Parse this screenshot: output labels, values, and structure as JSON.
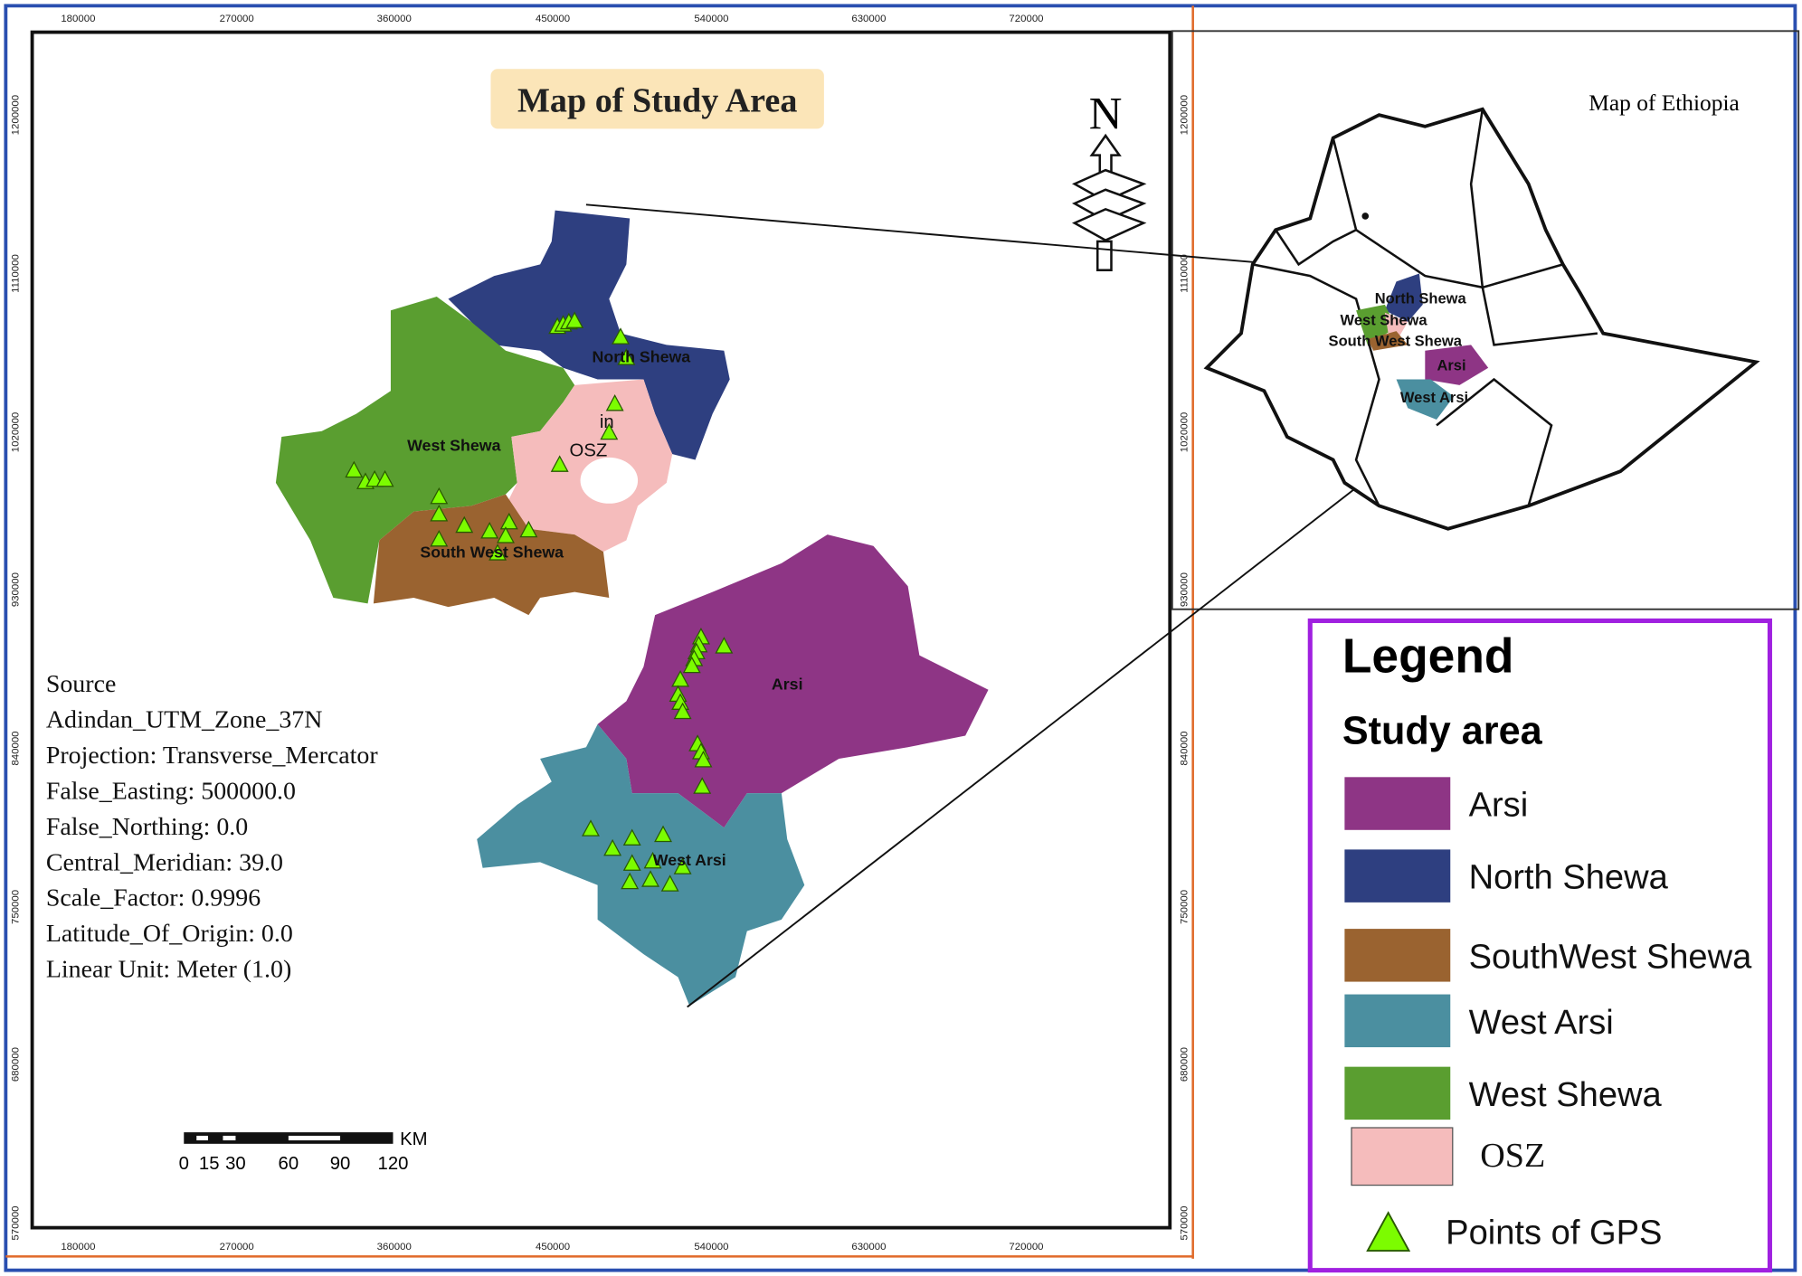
{
  "title": "Map of Study Area",
  "north": "N",
  "x_ticks": [
    180000,
    270000,
    360000,
    450000,
    540000,
    630000,
    720000
  ],
  "y_ticks": [
    1200000,
    1110000,
    1020000,
    930000,
    840000,
    750000,
    680000,
    570000
  ],
  "regions": [
    {
      "label": "North Shewa"
    },
    {
      "label": "West Shewa"
    },
    {
      "label": "OSZ"
    },
    {
      "label": "South West Shewa"
    },
    {
      "label": "Arsi"
    },
    {
      "label": "West Arsi"
    }
  ],
  "extra_label": "in",
  "source": [
    "Source",
    "Adindan_UTM_Zone_37N",
    "Projection: Transverse_Mercator",
    "False_Easting: 500000.0",
    "False_Northing: 0.0",
    "Central_Meridian: 39.0",
    "Scale_Factor: 0.9996",
    "Latitude_Of_Origin: 0.0",
    "Linear Unit: Meter (1.0)"
  ],
  "scale_bar": {
    "unit": "KM",
    "ticks": [
      0,
      15,
      30,
      60,
      90,
      120
    ]
  },
  "inset": {
    "title": "Map of Ethiopia",
    "labels": [
      "North Shewa",
      "West Shewa",
      "South West Shewa",
      "Arsi",
      "West Arsi"
    ]
  },
  "legend": {
    "title": "Legend",
    "subtitle": "Study area",
    "items": [
      "Arsi",
      "North Shewa",
      "SouthWest Shewa",
      "West Arsi",
      "West Shewa",
      "OSZ"
    ],
    "points": "Points of GPS"
  }
}
